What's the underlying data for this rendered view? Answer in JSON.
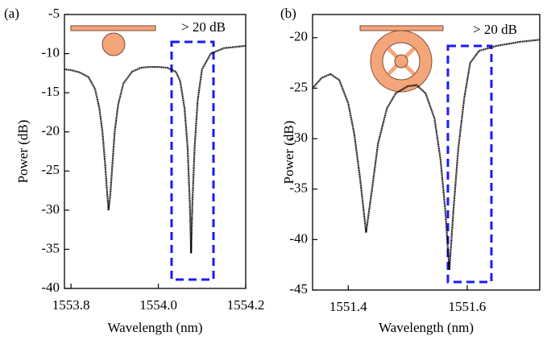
{
  "chart_data": [
    {
      "type": "line",
      "panel_label": "(a)",
      "annotation": "> 20 dB",
      "x_label": "Wavelength (nm)",
      "y_label": "Power (dB)",
      "color": "#000000",
      "x": [
        1553.785,
        1553.8,
        1553.82,
        1553.84,
        1553.855,
        1553.865,
        1553.872,
        1553.878,
        1553.883,
        1553.886,
        1553.89,
        1553.895,
        1553.9,
        1553.908,
        1553.92,
        1553.94,
        1553.96,
        1553.98,
        1554.0,
        1554.02,
        1554.04,
        1554.05,
        1554.06,
        1554.067,
        1554.072,
        1554.075,
        1554.078,
        1554.083,
        1554.09,
        1554.1,
        1554.12,
        1554.15,
        1554.2
      ],
      "values": [
        -12.0,
        -12.1,
        -12.4,
        -13.0,
        -14.5,
        -17,
        -20,
        -24,
        -28,
        -30.0,
        -28,
        -24,
        -20,
        -16.5,
        -13.8,
        -12.3,
        -11.8,
        -11.7,
        -11.7,
        -11.8,
        -12.3,
        -13.5,
        -17,
        -22,
        -29,
        -35.5,
        -29,
        -22,
        -16,
        -12,
        -10,
        -9.3,
        -9.0
      ],
      "xlim": [
        1553.785,
        1554.2
      ],
      "ylim": [
        -40,
        -5
      ],
      "xticks": [
        1553.8,
        {
          "value": 1554.0,
          "label": "1554.0"
        },
        1554.2
      ],
      "yticks": [
        -5,
        -10,
        -15,
        -20,
        -25,
        -30,
        -35,
        -40
      ]
    },
    {
      "type": "line",
      "panel_label": "(b)",
      "annotation": "> 20 dB",
      "x_label": "Wavelength (nm)",
      "y_label": "Power (dB)",
      "color": "#000000",
      "x": [
        1551.34,
        1551.355,
        1551.37,
        1551.385,
        1551.4,
        1551.41,
        1551.42,
        1551.43,
        1551.44,
        1551.45,
        1551.465,
        1551.48,
        1551.5,
        1551.515,
        1551.53,
        1551.545,
        1551.555,
        1551.563,
        1551.57,
        1551.577,
        1551.585,
        1551.595,
        1551.605,
        1551.62,
        1551.65,
        1551.69,
        1551.722
      ],
      "values": [
        -25.0,
        -24.0,
        -23.6,
        -24.2,
        -26.5,
        -29.5,
        -34,
        -39.3,
        -35,
        -30.5,
        -27,
        -25.5,
        -24.8,
        -24.7,
        -25.5,
        -28,
        -32,
        -37,
        -43.0,
        -37,
        -31,
        -26,
        -22.5,
        -21.3,
        -20.8,
        -20.4,
        -20.2
      ],
      "xlim": [
        1551.34,
        1551.722
      ],
      "ylim": [
        -45,
        -17.7
      ],
      "xticks": [
        1551.4,
        1551.6
      ],
      "yticks": [
        -20,
        -25,
        -30,
        -35,
        -40,
        -45
      ]
    }
  ]
}
